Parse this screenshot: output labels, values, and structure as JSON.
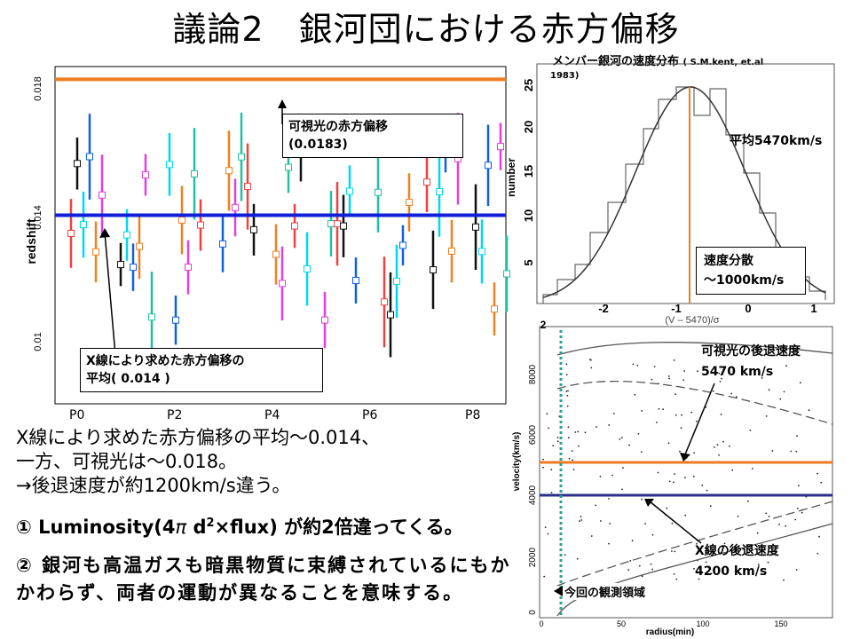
{
  "slide": {
    "title": "議論2　銀河団における赤方偏移"
  },
  "left_chart": {
    "ylabel": "redshift",
    "yticks": [
      "0.01",
      "0.014",
      "0.018"
    ],
    "xticks": [
      "P0",
      "P2",
      "P4",
      "P6",
      "P8"
    ],
    "optical_redshift": 0.0183,
    "xray_redshift": 0.014,
    "colors": {
      "optical_line": "#ee7b22",
      "xray_line": "#1020d8"
    },
    "callout_optical": {
      "line1": "可視光の赤方偏移",
      "line2": "(0.0183)"
    },
    "callout_xray": {
      "line1": "X線により求めた赤方偏移の",
      "line2": "平均( 0.014 )"
    }
  },
  "velocity_hist": {
    "title_main": "メンバー銀河の速度分布",
    "title_cite_a": "( S.M.kent, et.al",
    "title_cite_b": "1983)",
    "ylabel": "number",
    "yticks": [
      "5",
      "10",
      "15",
      "20",
      "25"
    ],
    "xticks": [
      "-2",
      "-1",
      "0",
      "1"
    ],
    "xlabel": "(V – 5470)/σ",
    "mean_label": "平均5470km/s",
    "dispersion_label_1": "速度分散",
    "dispersion_label_2": "～1000km/s"
  },
  "radius_chart": {
    "ylabel": "velocity(km/s)",
    "yticks": [
      "0",
      "2000",
      "4000",
      "6000",
      "8000"
    ],
    "xticks": [
      "0",
      "50",
      "100",
      "150"
    ],
    "xlabel": "radius(min)",
    "corner_label": "2",
    "optical_label_1": "可視光の後退速度",
    "optical_label_2": "5470 km/s",
    "xray_label_1": "X線の後退速度",
    "xray_label_2": "4200 km/s",
    "region_label": "今回の観測領域",
    "colors": {
      "optical_line": "#ee7b22",
      "xray_line": "#2b2f8c",
      "region_line": "#2aa198"
    }
  },
  "body": {
    "line1": "X線により求めた赤方偏移の平均～0.014、",
    "line2": "一方、可視光は～0.018。",
    "line3": "→後退速度が約1200km/s違う。",
    "point1": "① Luminosity(4",
    "point1_pi": "π",
    "point1_b": " d",
    "point1_sup": "2",
    "point1_c": "×flux) が約2倍違ってくる。",
    "point2": "② 銀河も高温ガスも暗黒物質に束縛されているにもかかわらず、両者の運動が異なることを意味する。"
  }
}
